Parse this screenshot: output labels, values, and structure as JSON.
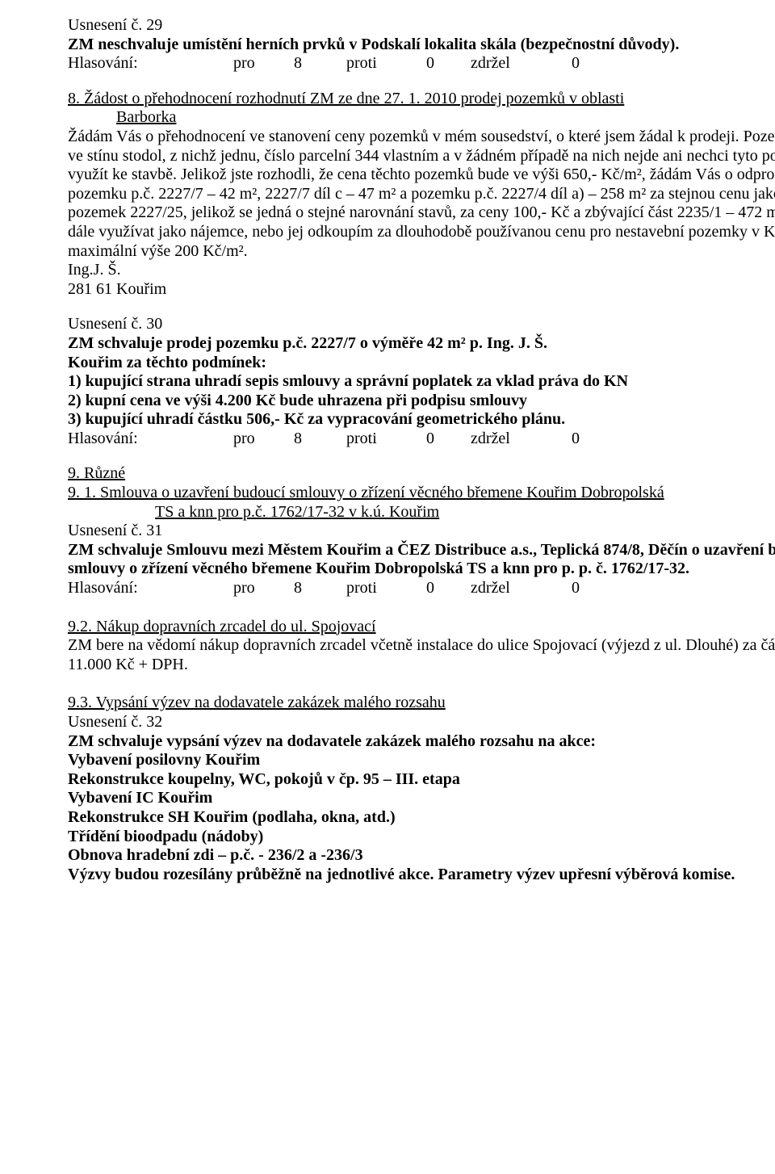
{
  "sec1": {
    "usneseni": "Usnesení č. 29",
    "title": "ZM neschvaluje umístění herních prvků v Podskalí lokalita skála (bezpečnostní důvody).",
    "hlas": {
      "label": "Hlasování:",
      "pro_l": "pro",
      "pro_v": "8",
      "proti_l": "proti",
      "proti_v": "0",
      "zdr_l": "zdržel",
      "zdr_v": "0"
    }
  },
  "sec2": {
    "heading_a": "8. Žádost o přehodnocení rozhodnutí ZM ze dne 27. 1. 2010 prodej pozemků v oblasti",
    "heading_b": "Barborka",
    "body": "Žádám Vás o přehodnocení ve stanovení ceny pozemků v mém sousedství, o které jsem žádal k prodeji. Pozemky jsou ve stínu stodol, z nichž jednu, číslo parcelní 344 vlastním a v žádném případě na nich nejde ani nechci tyto pozemky využít ke stavbě. Jelikož jste rozhodli, že cena těchto pozemků bude ve výši 650,- Kč/m², žádám Vás o odprodej pozemku p.č. 2227/7 – 42 m², 2227/7 díl c – 47 m²  a pozemku p.č. 2227/4 díl a) – 258 m² za stejnou cenu jako pozemek 2227/25, jelikož se jedná o stejné narovnání stavů, za ceny 100,- Kč a zbývající část 2235/1 – 472 m² budu dále využívat jako nájemce, nebo jej odkoupím za dlouhodobě používanou cenu pro nestavební pozemky v Kouřimi do maximální výše 200 Kč/m².",
    "sig1": "Ing.J. Š.",
    "sig2": "281 61 Kouřim"
  },
  "sec3": {
    "usneseni": "Usnesení č. 30",
    "l1": "ZM schvaluje prodej pozemku p.č. 2227/7 o výměře 42 m² p. Ing. J. Š.",
    "l2": "Kouřim za těchto podmínek:",
    "l3": "1) kupující strana uhradí sepis smlouvy a správní poplatek za vklad práva do KN",
    "l4": "2) kupní cena ve výši 4.200 Kč bude uhrazena při podpisu smlouvy",
    "l5": "3) kupující uhradí částku 506,- Kč za vypracování geometrického plánu.",
    "hlas": {
      "label": "Hlasování:",
      "pro_l": "pro",
      "pro_v": "8",
      "proti_l": "proti",
      "proti_v": "0",
      "zdr_l": "zdržel",
      "zdr_v": "0"
    }
  },
  "sec4": {
    "h": "9.  Různé",
    "h2a": "9. 1. Smlouva o uzavření budoucí smlouvy o zřízení věcného břemene Kouřim Dobropolská",
    "h2b": "TS a knn pro p.č. 1762/17-32 v k.ú. Kouřim",
    "usneseni": "Usnesení č. 31",
    "b1": "ZM schvaluje Smlouvu mezi Městem Kouřim a ČEZ Distribuce a.s., Teplická 874/8, Děčín o uzavření budoucí smlouvy o zřízení věcného břemene Kouřim Dobropolská TS a knn pro p. p. č. 1762/17-32.",
    "hlas": {
      "label": "Hlasování:",
      "pro_l": "pro",
      "pro_v": "8",
      "proti_l": "proti",
      "proti_v": "0",
      "zdr_l": "zdržel",
      "zdr_v": "0"
    }
  },
  "sec5": {
    "h": "9.2.  Nákup dopravních zrcadel do ul. Spojovací",
    "b": "ZM bere na vědomí nákup dopravních zrcadel včetně instalace do ulice Spojovací (výjezd z ul. Dlouhé) za částku 11.000 Kč + DPH."
  },
  "sec6": {
    "h": "9.3.  Vypsání výzev na dodavatele zakázek malého rozsahu",
    "usneseni": "Usnesení č. 32",
    "l1": "ZM schvaluje vypsání výzev na dodavatele zakázek malého rozsahu na akce:",
    "l2": "Vybavení posilovny Kouřim",
    "l3": "Rekonstrukce koupelny, WC, pokojů v čp. 95 – III. etapa",
    "l4": "Vybavení IC Kouřim",
    "l5": "Rekonstrukce SH Kouřim (podlaha, okna, atd.)",
    "l6": "Třídění bioodpadu (nádoby)",
    "l7": "Obnova hradební zdi – p.č. - 236/2 a -236/3",
    "l8": "Výzvy budou rozesílány průběžně na jednotlivé akce. Parametry výzev upřesní výběrová komise."
  }
}
